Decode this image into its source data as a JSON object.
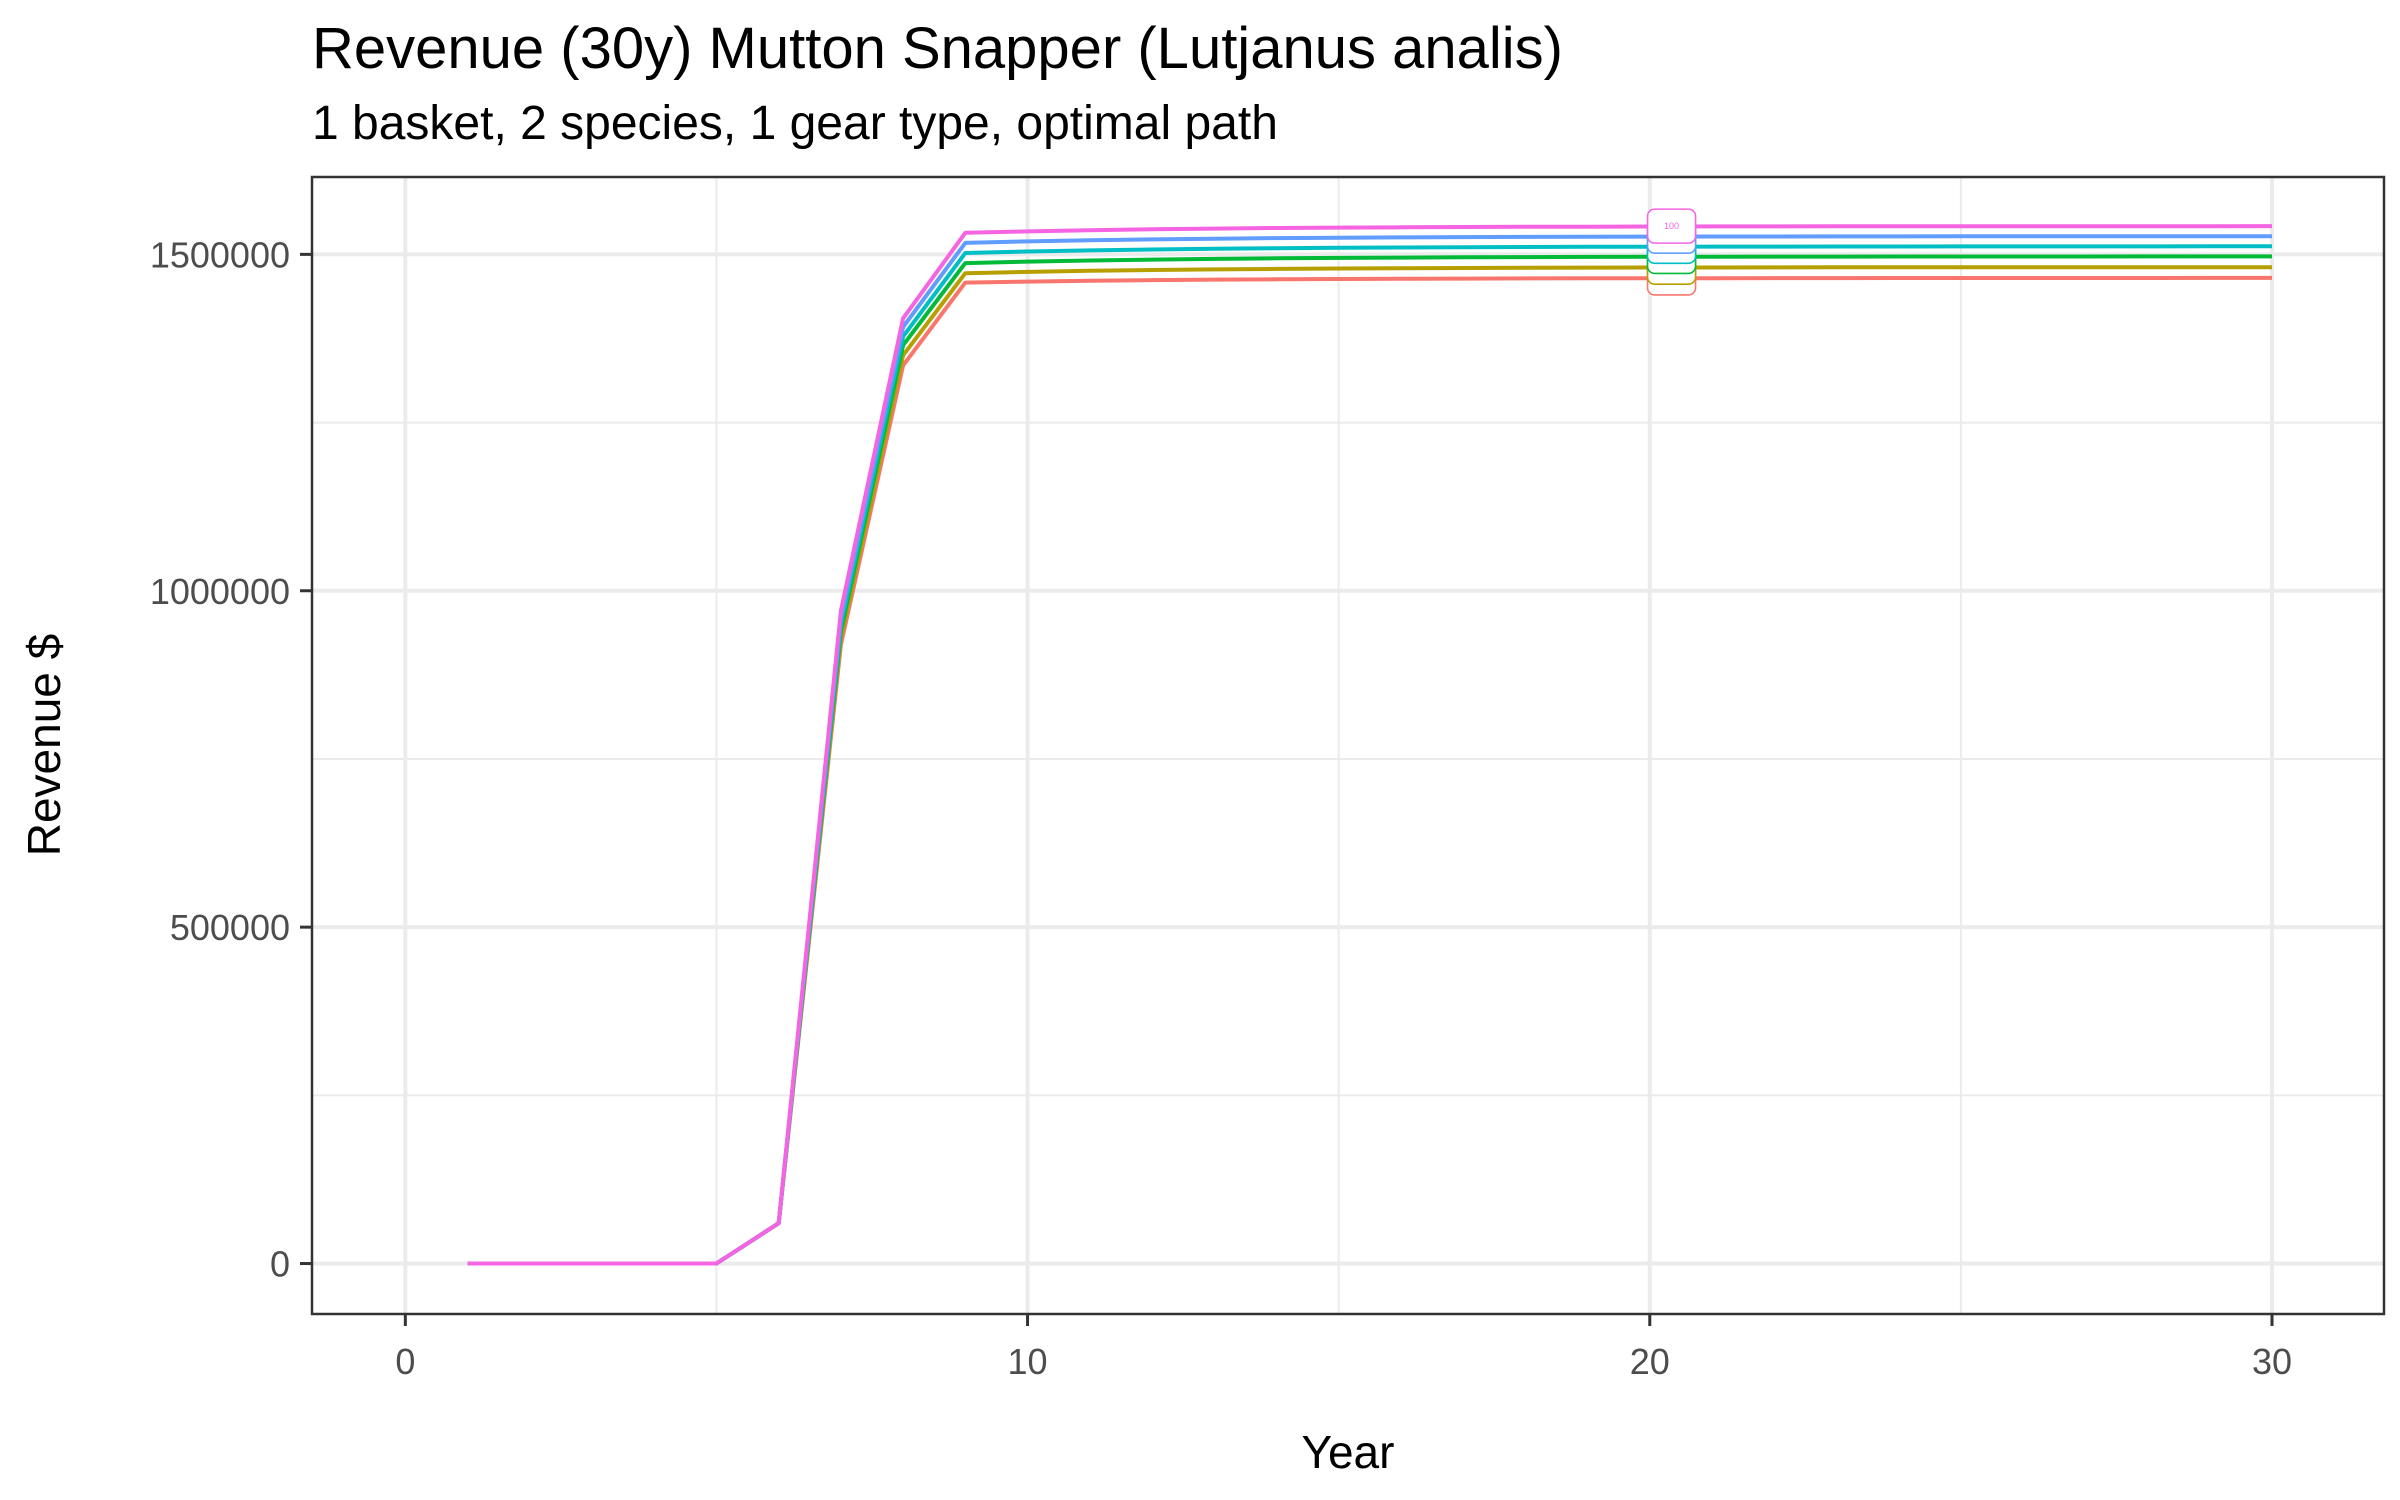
{
  "chart_data": {
    "type": "line",
    "title": "Revenue (30y) Mutton Snapper (Lutjanus analis)",
    "subtitle": "1 basket, 2 species, 1 gear type, optimal path",
    "xlabel": "Year",
    "ylabel": "Revenue $",
    "xlim": [
      -1.5,
      31.8
    ],
    "ylim": [
      -75000,
      1615000
    ],
    "x_ticks": [
      0,
      10,
      20,
      30
    ],
    "y_ticks": [
      0,
      500000,
      1000000,
      1500000
    ],
    "grid": true,
    "legend": "none",
    "label_x": 20.35,
    "x": [
      1,
      2,
      3,
      4,
      5,
      6,
      7,
      8,
      9,
      10,
      11,
      12,
      13,
      14,
      15,
      16,
      17,
      18,
      19,
      20,
      21,
      22,
      23,
      24,
      25,
      26,
      27,
      28,
      29,
      30
    ],
    "series": [
      {
        "color": "#F8766D",
        "plateau": 1465000,
        "ramp": [
          0,
          0,
          0,
          0,
          0,
          60000,
          920000,
          1335000,
          1458000
        ]
      },
      {
        "color": "#B79F00",
        "plateau": 1481000,
        "ramp": [
          0,
          0,
          0,
          0,
          0,
          60000,
          930000,
          1350000,
          1472000
        ]
      },
      {
        "color": "#00BA38",
        "plateau": 1497000,
        "ramp": [
          0,
          0,
          0,
          0,
          0,
          60000,
          940000,
          1365000,
          1487000
        ]
      },
      {
        "color": "#00BFC4",
        "plateau": 1512000,
        "ramp": [
          0,
          0,
          0,
          0,
          0,
          60000,
          950000,
          1378000,
          1502000
        ]
      },
      {
        "color": "#619CFF",
        "plateau": 1527000,
        "ramp": [
          0,
          0,
          0,
          0,
          0,
          60000,
          960000,
          1392000,
          1517000
        ]
      },
      {
        "color": "#F564E3",
        "plateau": 1542000,
        "ramp": [
          0,
          0,
          0,
          0,
          0,
          60000,
          970000,
          1405000,
          1532000
        ],
        "label": "100"
      }
    ]
  }
}
